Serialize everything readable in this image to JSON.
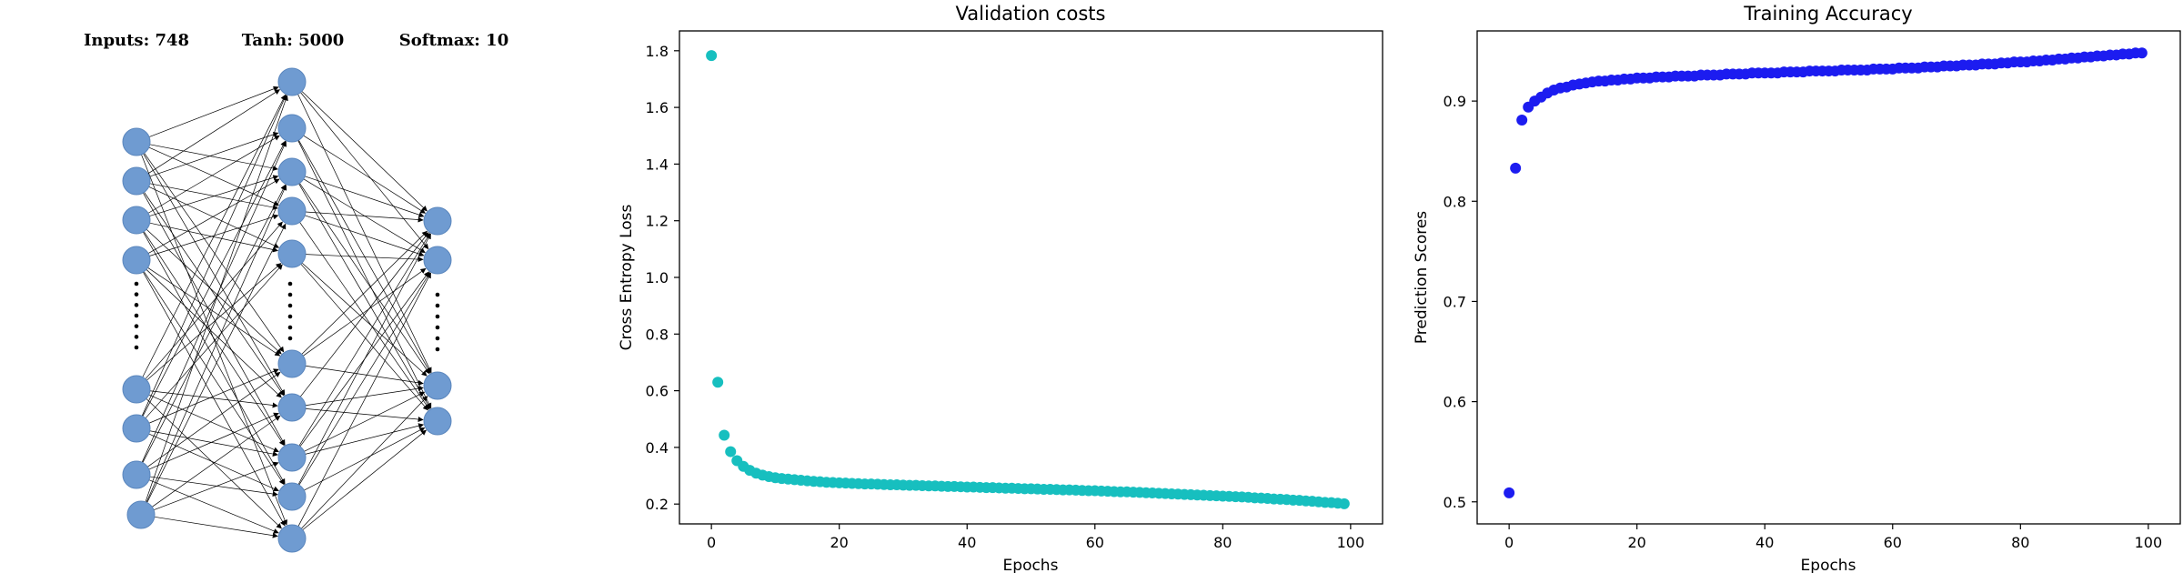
{
  "network": {
    "labels": {
      "inputs": "Inputs: 748",
      "hidden": "Tanh: 5000",
      "output": "Softmax: 10"
    },
    "node_color": "#6f9bd1"
  },
  "chart_data": [
    {
      "type": "scatter",
      "title": "Validation costs",
      "xlabel": "Epochs",
      "ylabel": "Cross Entropy Loss",
      "xlim": [
        -5,
        105
      ],
      "ylim": [
        0.13,
        1.87
      ],
      "xticks": [
        0,
        20,
        40,
        60,
        80,
        100
      ],
      "yticks": [
        0.2,
        0.4,
        0.6,
        0.8,
        1.0,
        1.2,
        1.4,
        1.6,
        1.8
      ],
      "yticklabels": [
        "0.2",
        "0.4",
        "0.6",
        "0.8",
        "1.0",
        "1.2",
        "1.4",
        "1.6",
        "1.8"
      ],
      "color": "#17bfbf",
      "grid": false,
      "series": [
        {
          "x": [
            0,
            1,
            2,
            3,
            4,
            5,
            6,
            7,
            8,
            9,
            10,
            11,
            12,
            13,
            14,
            15,
            16,
            17,
            18,
            19,
            20,
            21,
            22,
            23,
            24,
            25,
            26,
            27,
            28,
            29,
            30,
            31,
            32,
            33,
            34,
            35,
            36,
            37,
            38,
            39,
            40,
            41,
            42,
            43,
            44,
            45,
            46,
            47,
            48,
            49,
            50,
            51,
            52,
            53,
            54,
            55,
            56,
            57,
            58,
            59,
            60,
            61,
            62,
            63,
            64,
            65,
            66,
            67,
            68,
            69,
            70,
            71,
            72,
            73,
            74,
            75,
            76,
            77,
            78,
            79,
            80,
            81,
            82,
            83,
            84,
            85,
            86,
            87,
            88,
            89,
            90,
            91,
            92,
            93,
            94,
            95,
            96,
            97,
            98,
            99
          ],
          "y": [
            1.783,
            0.63,
            0.443,
            0.385,
            0.353,
            0.333,
            0.319,
            0.309,
            0.302,
            0.297,
            0.293,
            0.29,
            0.288,
            0.286,
            0.284,
            0.282,
            0.28,
            0.279,
            0.277,
            0.276,
            0.275,
            0.274,
            0.273,
            0.272,
            0.271,
            0.271,
            0.27,
            0.269,
            0.268,
            0.268,
            0.267,
            0.266,
            0.266,
            0.265,
            0.264,
            0.264,
            0.263,
            0.262,
            0.262,
            0.261,
            0.26,
            0.26,
            0.259,
            0.258,
            0.258,
            0.257,
            0.256,
            0.256,
            0.255,
            0.254,
            0.254,
            0.253,
            0.252,
            0.252,
            0.251,
            0.25,
            0.25,
            0.249,
            0.248,
            0.247,
            0.247,
            0.246,
            0.245,
            0.244,
            0.243,
            0.243,
            0.242,
            0.241,
            0.24,
            0.239,
            0.238,
            0.237,
            0.236,
            0.235,
            0.234,
            0.233,
            0.232,
            0.231,
            0.23,
            0.229,
            0.228,
            0.227,
            0.226,
            0.225,
            0.224,
            0.222,
            0.221,
            0.22,
            0.218,
            0.217,
            0.216,
            0.214,
            0.213,
            0.211,
            0.21,
            0.208,
            0.206,
            0.205,
            0.203,
            0.201
          ]
        }
      ]
    },
    {
      "type": "scatter",
      "title": "Training Accuracy",
      "xlabel": "Epochs",
      "ylabel": "Prediction Scores",
      "xlim": [
        -5,
        105
      ],
      "ylim": [
        0.478,
        0.97
      ],
      "xticks": [
        0,
        20,
        40,
        60,
        80,
        100
      ],
      "yticks": [
        0.5,
        0.6,
        0.7,
        0.8,
        0.9
      ],
      "yticklabels": [
        "0.5",
        "0.6",
        "0.7",
        "0.8",
        "0.9"
      ],
      "color": "#1c1cf0",
      "grid": false,
      "series": [
        {
          "x": [
            0,
            1,
            2,
            3,
            4,
            5,
            6,
            7,
            8,
            9,
            10,
            11,
            12,
            13,
            14,
            15,
            16,
            17,
            18,
            19,
            20,
            21,
            22,
            23,
            24,
            25,
            26,
            27,
            28,
            29,
            30,
            31,
            32,
            33,
            34,
            35,
            36,
            37,
            38,
            39,
            40,
            41,
            42,
            43,
            44,
            45,
            46,
            47,
            48,
            49,
            50,
            51,
            52,
            53,
            54,
            55,
            56,
            57,
            58,
            59,
            60,
            61,
            62,
            63,
            64,
            65,
            66,
            67,
            68,
            69,
            70,
            71,
            72,
            73,
            74,
            75,
            76,
            77,
            78,
            79,
            80,
            81,
            82,
            83,
            84,
            85,
            86,
            87,
            88,
            89,
            90,
            91,
            92,
            93,
            94,
            95,
            96,
            97,
            98,
            99
          ],
          "y": [
            0.509,
            0.833,
            0.881,
            0.894,
            0.9,
            0.904,
            0.908,
            0.911,
            0.913,
            0.914,
            0.916,
            0.917,
            0.918,
            0.919,
            0.92,
            0.92,
            0.921,
            0.921,
            0.922,
            0.922,
            0.923,
            0.923,
            0.923,
            0.924,
            0.924,
            0.924,
            0.925,
            0.925,
            0.925,
            0.925,
            0.926,
            0.926,
            0.926,
            0.926,
            0.927,
            0.927,
            0.927,
            0.927,
            0.928,
            0.928,
            0.928,
            0.928,
            0.928,
            0.929,
            0.929,
            0.929,
            0.929,
            0.93,
            0.93,
            0.93,
            0.93,
            0.93,
            0.931,
            0.931,
            0.931,
            0.931,
            0.931,
            0.932,
            0.932,
            0.932,
            0.932,
            0.933,
            0.933,
            0.933,
            0.933,
            0.934,
            0.934,
            0.934,
            0.935,
            0.935,
            0.935,
            0.936,
            0.936,
            0.936,
            0.937,
            0.937,
            0.937,
            0.938,
            0.938,
            0.939,
            0.939,
            0.939,
            0.94,
            0.94,
            0.941,
            0.941,
            0.942,
            0.942,
            0.943,
            0.943,
            0.944,
            0.944,
            0.945,
            0.945,
            0.946,
            0.946,
            0.947,
            0.947,
            0.948,
            0.948
          ]
        }
      ]
    }
  ]
}
